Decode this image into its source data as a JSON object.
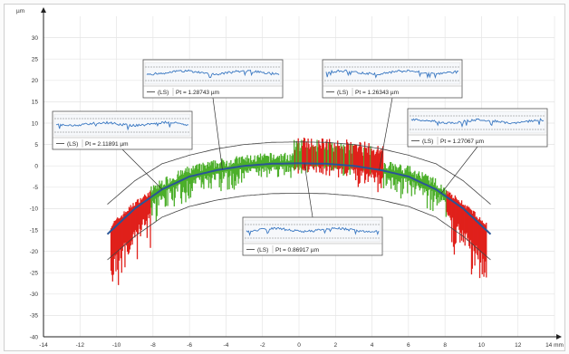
{
  "chart_data": {
    "type": "line",
    "ylabel": "µm",
    "xunit": "mm",
    "xlim": [
      -14,
      14
    ],
    "ylim": [
      -40,
      35
    ],
    "x_ticks": [
      -14,
      -12,
      -10,
      -8,
      -6,
      -4,
      -2,
      0,
      2,
      4,
      6,
      8,
      10,
      12,
      14
    ],
    "x_tick_labels": [
      "-14",
      "-12",
      "-10",
      "-8",
      "-6",
      "-4",
      "-2",
      "0",
      "2",
      "4",
      "6",
      "8",
      "10",
      "12",
      "14 mm"
    ],
    "y_ticks": [
      30,
      25,
      20,
      15,
      10,
      5,
      0,
      -5,
      -10,
      -15,
      -20,
      -25,
      -30,
      -35,
      -40
    ],
    "grid": true,
    "profile": {
      "x": [
        -10.5,
        -9,
        -7.5,
        -6,
        -4.5,
        -3,
        -1.5,
        0,
        1.5,
        3,
        4.5,
        6,
        7.5,
        9,
        10.5
      ],
      "y": [
        -16,
        -10,
        -5.5,
        -2.5,
        -1,
        0,
        0.5,
        0.6,
        0.5,
        0,
        -1,
        -2.5,
        -5.5,
        -10,
        -16
      ]
    },
    "upper_tolerance": {
      "x": [
        -10.5,
        -9,
        -7.5,
        -6,
        -4.5,
        -3,
        -1.5,
        0,
        1.5,
        3,
        4.5,
        6,
        7.5,
        9,
        10.5
      ],
      "y": [
        -9,
        -3.5,
        0.5,
        2.5,
        4,
        5,
        5.5,
        5.6,
        5.5,
        5,
        4,
        2.5,
        0.5,
        -3.5,
        -9
      ]
    },
    "lower_tolerance": {
      "x": [
        -10.5,
        -9,
        -7.5,
        -6,
        -4.5,
        -3,
        -1.5,
        0,
        1.5,
        3,
        4.5,
        6,
        7.5,
        9,
        10.5
      ],
      "y": [
        -22,
        -16.5,
        -12,
        -9.5,
        -8,
        -7,
        -6.5,
        -6.4,
        -6.5,
        -7,
        -8,
        -9.5,
        -12,
        -16.5,
        -22
      ]
    },
    "insets": [
      {
        "label": "(LS)",
        "pt": "Pt = 2.11891 µm"
      },
      {
        "label": "(LS)",
        "pt": "Pt = 1.28743 µm"
      },
      {
        "label": "(LS)",
        "pt": "Pt = 0.86917 µm"
      },
      {
        "label": "(LS)",
        "pt": "Pt = 1.26343 µm"
      },
      {
        "label": "(LS)",
        "pt": "Pt = 1.27067 µm"
      }
    ],
    "colors": {
      "profile": "#2a5596",
      "in_tolerance": "#4caf2a",
      "out_of_tolerance": "#e0201b",
      "tolerance_lines": "#444444",
      "inset_trace": "#3a78c2",
      "grid": "#e4e4e4"
    }
  }
}
